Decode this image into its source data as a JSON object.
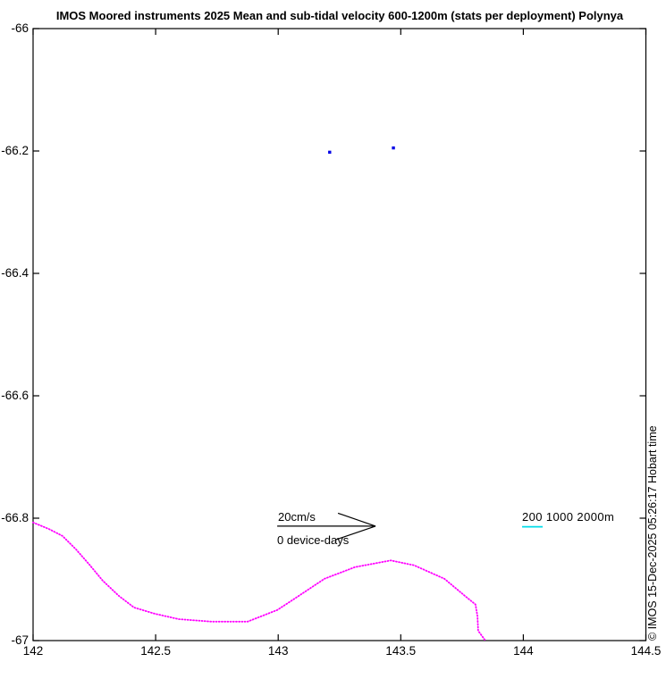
{
  "figure": {
    "title": "IMOS Moored instruments 2025 Mean and sub-tidal velocity 600-1200m (stats per deployment) Polynya",
    "copyright": "© IMOS 15-Dec-2025 05:26:17 Hobart time"
  },
  "chart_data": {
    "type": "scatter",
    "title": "IMOS Moored instruments 2025 Mean and sub-tidal velocity 600-1200m (stats per deployment) Polynya",
    "xlabel": "",
    "ylabel": "",
    "xlim": [
      142,
      144.5
    ],
    "ylim": [
      -67,
      -66
    ],
    "grid": false,
    "tick_direction": "in",
    "box": true,
    "x_ticks": [
      142,
      142.5,
      143,
      143.5,
      144,
      144.5
    ],
    "x_tick_labels": [
      "142",
      "142.5",
      "143",
      "143.5",
      "144",
      "144.5"
    ],
    "y_ticks": [
      -66,
      -66.2,
      -66.4,
      -66.6,
      -66.8,
      -67
    ],
    "y_tick_labels": [
      "-66",
      "-66.2",
      "-66.4",
      "-66.6",
      "-66.8",
      "-67"
    ],
    "series": [
      {
        "name": "mooring-mean-velocity-points",
        "type": "scatter",
        "marker": "square",
        "color": "#0000E6",
        "points": [
          {
            "lon": 143.21,
            "lat": -66.202
          },
          {
            "lon": 143.47,
            "lat": -66.195
          }
        ]
      },
      {
        "name": "coastline",
        "type": "line",
        "style": "dotted",
        "color": "#FF00FF",
        "points": [
          [
            142.0,
            -66.807
          ],
          [
            142.066,
            -66.818
          ],
          [
            142.12,
            -66.829
          ],
          [
            142.175,
            -66.851
          ],
          [
            142.23,
            -66.876
          ],
          [
            142.284,
            -66.902
          ],
          [
            142.35,
            -66.927
          ],
          [
            142.412,
            -66.946
          ],
          [
            142.496,
            -66.956
          ],
          [
            142.594,
            -66.965
          ],
          [
            142.729,
            -66.969
          ],
          [
            142.875,
            -66.969
          ],
          [
            142.996,
            -66.95
          ],
          [
            143.069,
            -66.931
          ],
          [
            143.189,
            -66.899
          ],
          [
            143.313,
            -66.88
          ],
          [
            143.459,
            -66.869
          ],
          [
            143.554,
            -66.877
          ],
          [
            143.678,
            -66.899
          ],
          [
            143.762,
            -66.927
          ],
          [
            143.805,
            -66.941
          ],
          [
            143.813,
            -66.96
          ],
          [
            143.816,
            -66.984
          ],
          [
            143.845,
            -67.0
          ]
        ]
      }
    ],
    "annotations": {
      "scale_arrow": {
        "label": "20cm/s",
        "sublabel": "0 device-days",
        "from": [
          142.996,
          -66.813
        ],
        "to": [
          143.397,
          -66.813
        ],
        "color": "#000000"
      },
      "depth_legend": {
        "label": "200 1000 2000m",
        "underline_lon": [
          143.995,
          144.079
        ],
        "underline_lat": -66.814,
        "underline_color": "#00DCE8"
      }
    },
    "colors": {
      "coastline": "#FF00FF",
      "mooring_marker": "#0000E6",
      "contour_200m": "#00DCE8",
      "axis": "#000000"
    }
  }
}
